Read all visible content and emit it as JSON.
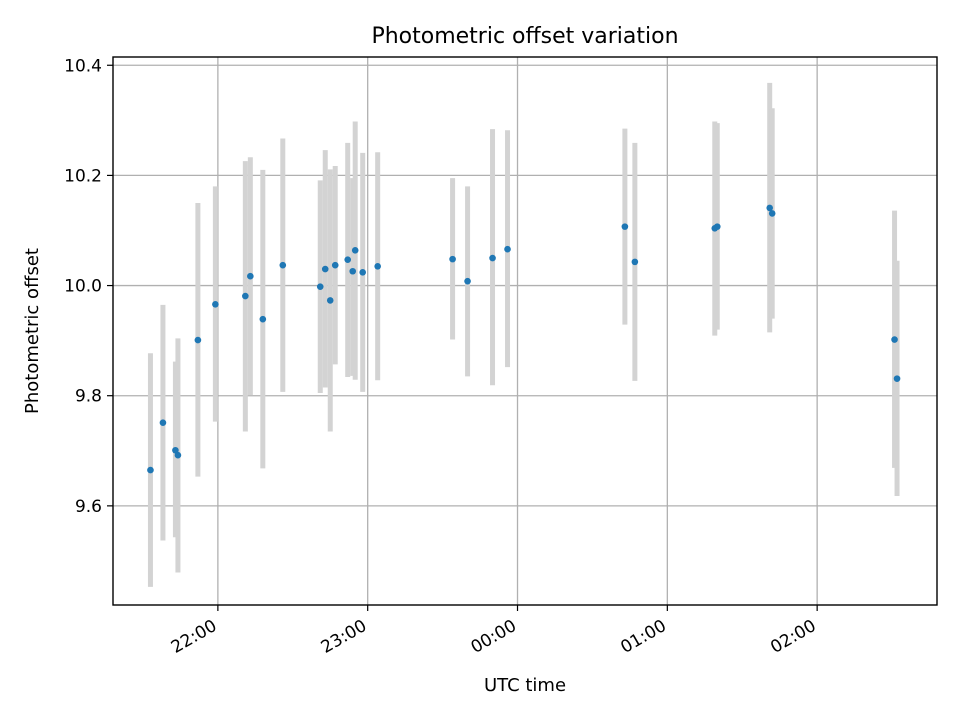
{
  "chart_data": {
    "type": "scatter",
    "title": "Photometric offset variation",
    "xlabel": "UTC time",
    "ylabel": "Photometric offset",
    "grid": true,
    "x_ticks": [
      "22:00",
      "23:00",
      "00:00",
      "01:00",
      "02:00"
    ],
    "y_ticks": [
      "9.6",
      "9.8",
      "10.0",
      "10.2",
      "10.4"
    ],
    "xlim": [
      "21:18",
      "02:48"
    ],
    "ylim": [
      9.42,
      10.415
    ],
    "colors": {
      "marker": "#1f77b4",
      "errorbar": "#d3d3d3",
      "grid": "#b0b0b0"
    },
    "series": [
      {
        "points": [
          {
            "t": "21:33",
            "y": 9.665,
            "lo": 9.453,
            "hi": 9.877
          },
          {
            "t": "21:38",
            "y": 9.751,
            "lo": 9.537,
            "hi": 9.965
          },
          {
            "t": "21:43",
            "y": 9.701,
            "lo": 9.543,
            "hi": 9.862
          },
          {
            "t": "21:44",
            "y": 9.692,
            "lo": 9.479,
            "hi": 9.904
          },
          {
            "t": "21:52",
            "y": 9.901,
            "lo": 9.653,
            "hi": 10.15
          },
          {
            "t": "21:59",
            "y": 9.966,
            "lo": 9.753,
            "hi": 10.18
          },
          {
            "t": "22:11",
            "y": 9.981,
            "lo": 9.735,
            "hi": 10.226
          },
          {
            "t": "22:13",
            "y": 10.017,
            "lo": 9.801,
            "hi": 10.233
          },
          {
            "t": "22:18",
            "y": 9.939,
            "lo": 9.668,
            "hi": 10.21
          },
          {
            "t": "22:26",
            "y": 10.037,
            "lo": 9.807,
            "hi": 10.267
          },
          {
            "t": "22:41",
            "y": 9.998,
            "lo": 9.805,
            "hi": 10.191
          },
          {
            "t": "22:43",
            "y": 10.03,
            "lo": 9.815,
            "hi": 10.246
          },
          {
            "t": "22:45",
            "y": 9.973,
            "lo": 9.735,
            "hi": 10.211
          },
          {
            "t": "22:47",
            "y": 10.037,
            "lo": 9.857,
            "hi": 10.217
          },
          {
            "t": "22:52",
            "y": 10.047,
            "lo": 9.834,
            "hi": 10.259
          },
          {
            "t": "22:54",
            "y": 10.026,
            "lo": 9.836,
            "hi": 10.195
          },
          {
            "t": "22:55",
            "y": 10.064,
            "lo": 9.829,
            "hi": 10.298
          },
          {
            "t": "22:58",
            "y": 10.024,
            "lo": 9.807,
            "hi": 10.241
          },
          {
            "t": "23:04",
            "y": 10.035,
            "lo": 9.828,
            "hi": 10.242
          },
          {
            "t": "23:34",
            "y": 10.048,
            "lo": 9.902,
            "hi": 10.195
          },
          {
            "t": "23:40",
            "y": 10.008,
            "lo": 9.835,
            "hi": 10.18
          },
          {
            "t": "23:50",
            "y": 10.05,
            "lo": 9.819,
            "hi": 10.284
          },
          {
            "t": "23:56",
            "y": 10.066,
            "lo": 9.852,
            "hi": 10.282
          },
          {
            "t": "00:43",
            "y": 10.107,
            "lo": 9.929,
            "hi": 10.285
          },
          {
            "t": "00:47",
            "y": 10.043,
            "lo": 9.827,
            "hi": 10.259
          },
          {
            "t": "01:19",
            "y": 10.104,
            "lo": 9.909,
            "hi": 10.298
          },
          {
            "t": "01:20",
            "y": 10.107,
            "lo": 9.92,
            "hi": 10.295
          },
          {
            "t": "01:41",
            "y": 10.141,
            "lo": 9.915,
            "hi": 10.368
          },
          {
            "t": "01:42",
            "y": 10.131,
            "lo": 9.94,
            "hi": 10.322
          },
          {
            "t": "02:31",
            "y": 9.902,
            "lo": 9.669,
            "hi": 10.136
          },
          {
            "t": "02:32",
            "y": 9.831,
            "lo": 9.618,
            "hi": 10.045
          }
        ]
      }
    ]
  }
}
